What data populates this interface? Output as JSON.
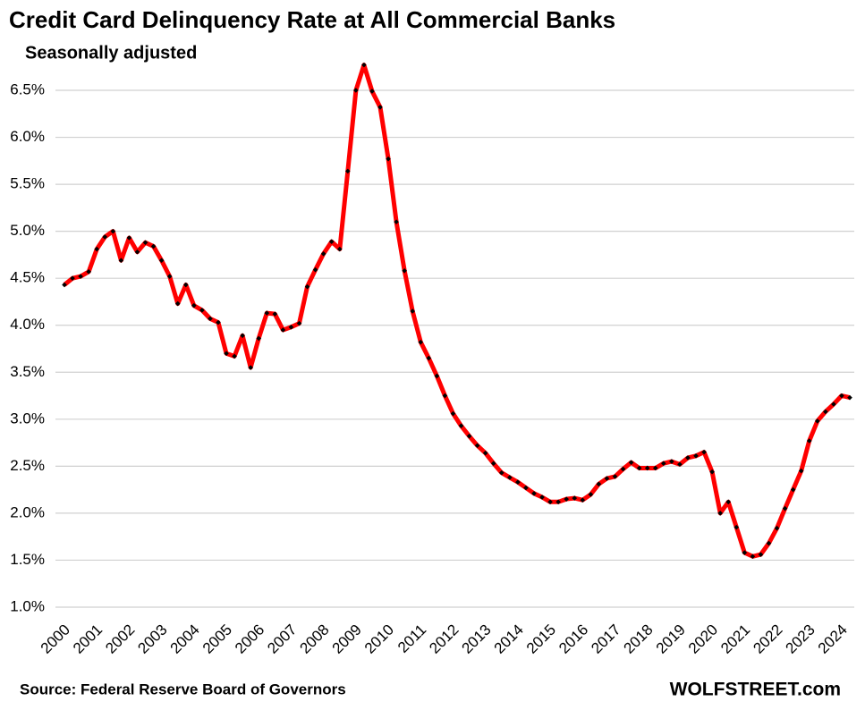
{
  "chart_data": {
    "type": "line",
    "title": "Credit Card Delinquency Rate at All Commercial Banks",
    "subtitle": "Seasonally adjusted",
    "source": "Source: Federal Reserve Board of Governors",
    "credit": "WOLFSTREET.com",
    "categories": [
      "2000",
      null,
      null,
      null,
      "2001",
      null,
      null,
      null,
      "2002",
      null,
      null,
      null,
      "2003",
      null,
      null,
      null,
      "2004",
      null,
      null,
      null,
      "2005",
      null,
      null,
      null,
      "2006",
      null,
      null,
      null,
      "2007",
      null,
      null,
      null,
      "2008",
      null,
      null,
      null,
      "2009",
      null,
      null,
      null,
      "2010",
      null,
      null,
      null,
      "2011",
      null,
      null,
      null,
      "2012",
      null,
      null,
      null,
      "2013",
      null,
      null,
      null,
      "2014",
      null,
      null,
      null,
      "2015",
      null,
      null,
      null,
      "2016",
      null,
      null,
      null,
      "2017",
      null,
      null,
      null,
      "2018",
      null,
      null,
      null,
      "2019",
      null,
      null,
      null,
      "2020",
      null,
      null,
      null,
      "2021",
      null,
      null,
      null,
      "2022",
      null,
      null,
      null,
      "2023",
      null,
      null,
      null,
      "2024",
      null
    ],
    "series": [
      {
        "color": "#ff0000",
        "marker_color": "#000000",
        "values": [
          4.43,
          4.5,
          4.52,
          4.57,
          4.81,
          4.94,
          5.0,
          4.69,
          4.93,
          4.78,
          4.88,
          4.84,
          4.69,
          4.52,
          4.23,
          4.43,
          4.21,
          4.16,
          4.07,
          4.03,
          3.7,
          3.67,
          3.89,
          3.55,
          3.86,
          4.13,
          4.12,
          3.95,
          3.98,
          4.02,
          4.41,
          4.59,
          4.76,
          4.89,
          4.81,
          5.64,
          6.5,
          6.77,
          6.49,
          6.32,
          5.77,
          5.1,
          4.58,
          4.15,
          3.82,
          3.65,
          3.46,
          3.25,
          3.06,
          2.93,
          2.82,
          2.72,
          2.64,
          2.53,
          2.43,
          2.38,
          2.33,
          2.27,
          2.21,
          2.17,
          2.12,
          2.12,
          2.15,
          2.16,
          2.14,
          2.2,
          2.31,
          2.37,
          2.39,
          2.47,
          2.54,
          2.48,
          2.48,
          2.48,
          2.53,
          2.55,
          2.52,
          2.59,
          2.61,
          2.65,
          2.44,
          2.0,
          2.12,
          1.85,
          1.58,
          1.54,
          1.56,
          1.68,
          1.84,
          2.05,
          2.25,
          2.45,
          2.77,
          2.98,
          3.08,
          3.16,
          3.25,
          3.23
        ]
      }
    ],
    "ylim": [
      1.0,
      6.85
    ],
    "yticks": [
      {
        "value": 1.0,
        "label": "1.0%"
      },
      {
        "value": 1.5,
        "label": "1.5%"
      },
      {
        "value": 2.0,
        "label": "2.0%"
      },
      {
        "value": 2.5,
        "label": "2.5%"
      },
      {
        "value": 3.0,
        "label": "3.0%"
      },
      {
        "value": 3.5,
        "label": "3.5%"
      },
      {
        "value": 4.0,
        "label": "4.0%"
      },
      {
        "value": 4.5,
        "label": "4.5%"
      },
      {
        "value": 5.0,
        "label": "5.0%"
      },
      {
        "value": 5.5,
        "label": "5.5%"
      },
      {
        "value": 6.0,
        "label": "6.0%"
      },
      {
        "value": 6.5,
        "label": "6.5%"
      }
    ],
    "grid": true
  }
}
